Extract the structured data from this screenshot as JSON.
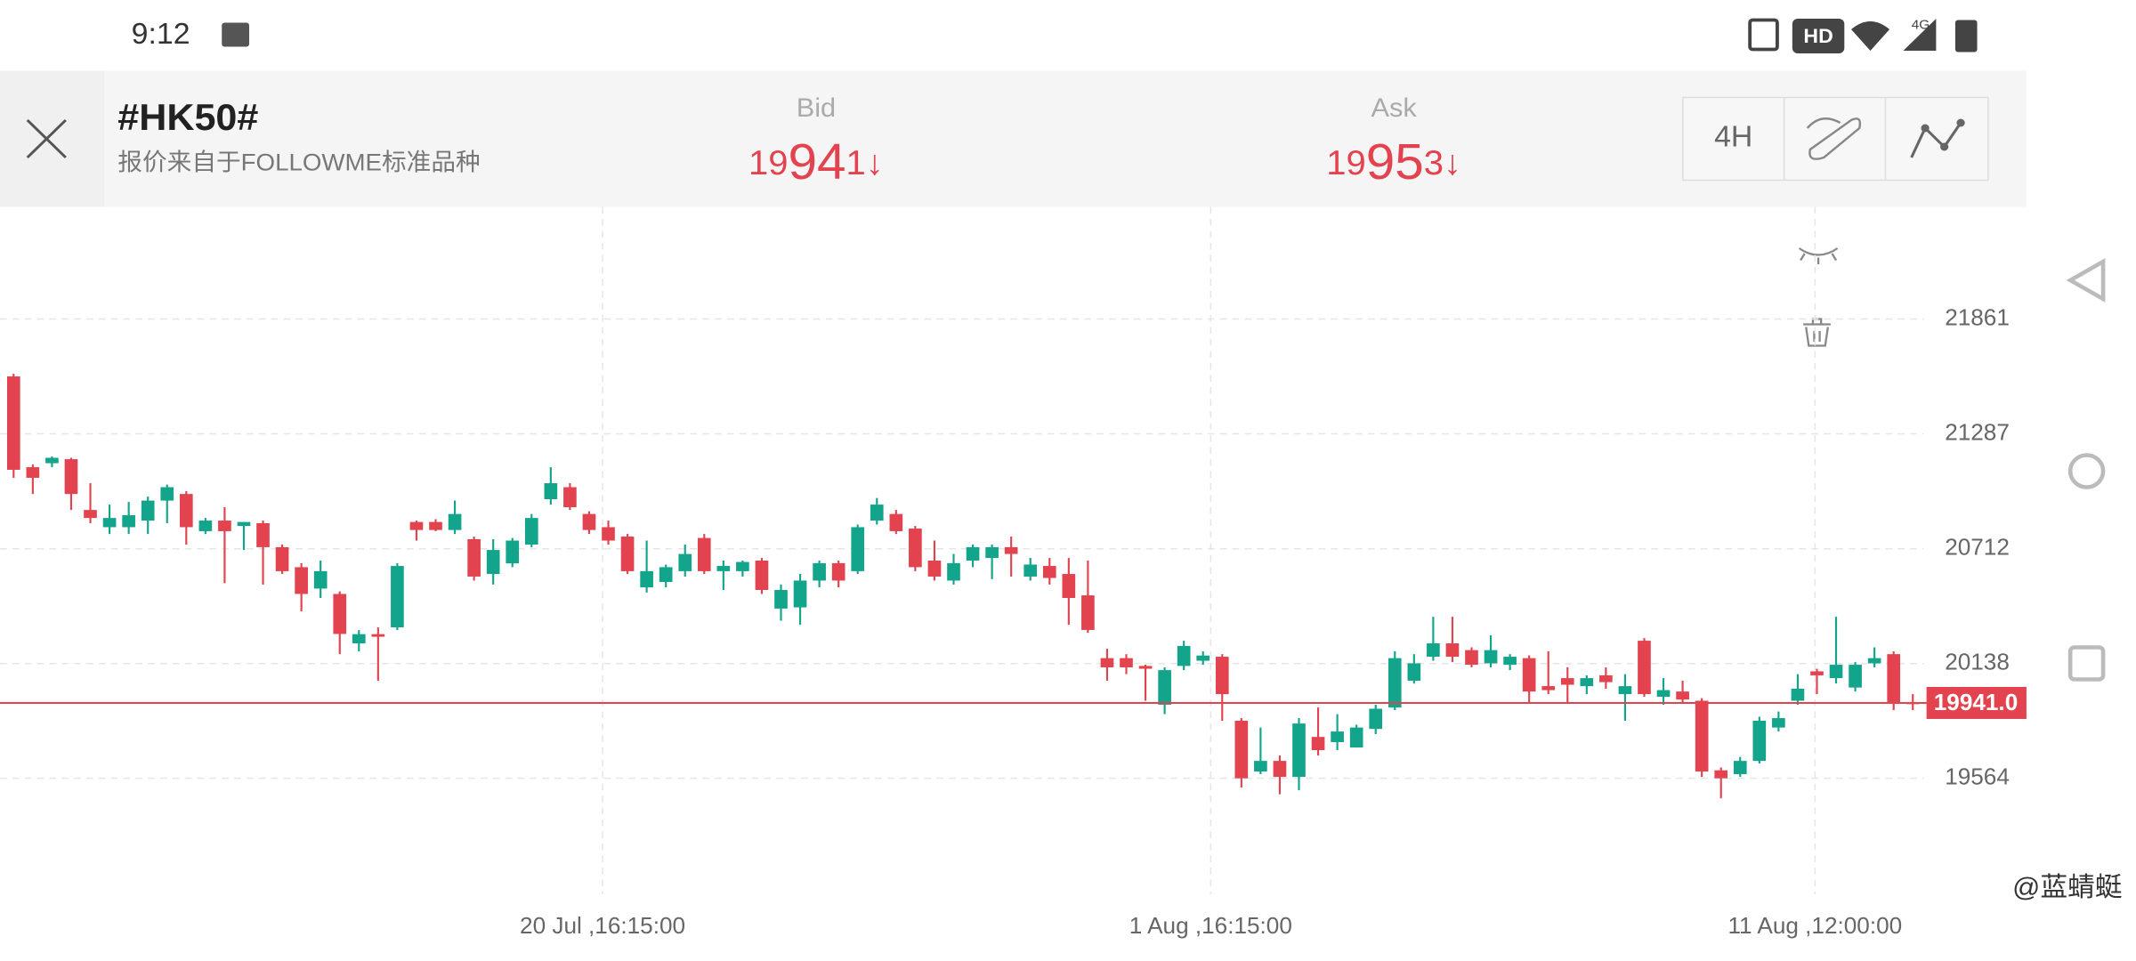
{
  "status_bar": {
    "time": "9:12",
    "hd": "HD",
    "network": "4G"
  },
  "header": {
    "symbol": "#HK50#",
    "source": "报价来自于FOLLOWME标准品种",
    "bid": {
      "label": "Bid",
      "price_parts": [
        "19",
        "94",
        "1"
      ],
      "direction": "↓"
    },
    "ask": {
      "label": "Ask",
      "price_parts": [
        "19",
        "95",
        "3"
      ],
      "direction": "↓"
    },
    "timeframe": "4H"
  },
  "chart_data": {
    "type": "candlestick",
    "up_color": "#13a58c",
    "down_color": "#e2434f",
    "grid": true,
    "ylim": [
      18984,
      22422
    ],
    "yticks": [
      21861,
      21287,
      20712,
      20138,
      19564
    ],
    "xlim": [
      -0.71,
      99.57
    ],
    "xticks": [
      {
        "value": 30.7,
        "label": "20 Jul ,16:15:00"
      },
      {
        "value": 62.4,
        "label": "1 Aug ,16:15:00"
      },
      {
        "value": 93.9,
        "label": "11 Aug ,12:00:00"
      }
    ],
    "last_price": {
      "value": 19941,
      "label": "19941.0"
    },
    "open": [
      21574,
      21120,
      21140,
      21160,
      20906,
      20820,
      20820,
      20853,
      20953,
      20986,
      20800,
      20853,
      20826,
      20840,
      20720,
      20620,
      20513,
      20486,
      20239,
      20285,
      20319,
      20846,
      20846,
      20806,
      20760,
      20586,
      20639,
      20733,
      20960,
      21020,
      20886,
      20820,
      20773,
      20519,
      20546,
      20600,
      20766,
      20600,
      20600,
      20653,
      20413,
      20419,
      20553,
      20640,
      20600,
      20853,
      20886,
      20813,
      20653,
      20553,
      20653,
      20666,
      20720,
      20573,
      20626,
      20586,
      20479,
      20165,
      20165,
      20126,
      19932,
      20126,
      20152,
      20172,
      19852,
      19598,
      19651,
      19571,
      19771,
      19745,
      19718,
      19811,
      19918,
      20052,
      20172,
      20239,
      20205,
      20139,
      20132,
      20165,
      20025,
      20065,
      20025,
      20079,
      19985,
      20252,
      19972,
      19998,
      19952,
      19604,
      19585,
      19651,
      19818,
      19952,
      20099,
      20065,
      20018,
      20139,
      20185,
      19945
    ],
    "high": [
      21587,
      21134,
      21174,
      21167,
      21040,
      20933,
      20946,
      20973,
      21033,
      21000,
      20866,
      20920,
      20846,
      20853,
      20733,
      20640,
      20653,
      20499,
      20305,
      20319,
      20640,
      20853,
      20860,
      20953,
      20773,
      20760,
      20766,
      20886,
      21120,
      21040,
      20900,
      20853,
      20786,
      20753,
      20633,
      20733,
      20786,
      20653,
      20653,
      20666,
      20533,
      20586,
      20653,
      20653,
      20833,
      20966,
      20906,
      20826,
      20753,
      20686,
      20733,
      20733,
      20773,
      20666,
      20666,
      20666,
      20653,
      20212,
      20185,
      20132,
      20119,
      20252,
      20199,
      20185,
      19865,
      19818,
      19678,
      19865,
      19918,
      19885,
      19832,
      19932,
      20199,
      20185,
      20372,
      20372,
      20219,
      20279,
      20185,
      20179,
      20199,
      20119,
      20079,
      20119,
      20085,
      20265,
      20065,
      20052,
      19965,
      19618,
      19671,
      19872,
      19898,
      20085,
      20112,
      20372,
      20145,
      20219,
      20199,
      19985
    ],
    "low": [
      21067,
      20986,
      21120,
      20906,
      20840,
      20786,
      20786,
      20786,
      20840,
      20733,
      20786,
      20540,
      20706,
      20533,
      20586,
      20399,
      20466,
      20185,
      20199,
      20052,
      20305,
      20753,
      20800,
      20786,
      20553,
      20533,
      20620,
      20720,
      20933,
      20906,
      20786,
      20733,
      20586,
      20493,
      20519,
      20573,
      20586,
      20506,
      20573,
      20486,
      20352,
      20332,
      20519,
      20519,
      20586,
      20833,
      20786,
      20600,
      20553,
      20533,
      20620,
      20560,
      20573,
      20553,
      20533,
      20332,
      20292,
      20052,
      20085,
      19952,
      19885,
      20105,
      20132,
      19852,
      19518,
      19585,
      19484,
      19504,
      19678,
      19705,
      19718,
      19785,
      19905,
      20038,
      20152,
      20145,
      20119,
      20119,
      20105,
      19938,
      19985,
      19945,
      19985,
      20012,
      19852,
      19972,
      19932,
      19945,
      19571,
      19464,
      19571,
      19638,
      19798,
      19932,
      19985,
      20038,
      19998,
      20119,
      19905,
      19905
    ],
    "close": [
      21107,
      21067,
      21167,
      20986,
      20866,
      20866,
      20880,
      20953,
      21020,
      20820,
      20853,
      20800,
      20846,
      20720,
      20600,
      20486,
      20600,
      20286,
      20285,
      20272,
      20626,
      20806,
      20806,
      20886,
      20573,
      20706,
      20753,
      20866,
      21040,
      20920,
      20806,
      20753,
      20600,
      20600,
      20620,
      20686,
      20600,
      20626,
      20646,
      20506,
      20506,
      20553,
      20640,
      20553,
      20820,
      20933,
      20800,
      20620,
      20573,
      20640,
      20720,
      20720,
      20686,
      20633,
      20566,
      20466,
      20306,
      20119,
      20119,
      20112,
      20105,
      20226,
      20178,
      19985,
      19564,
      19651,
      19571,
      19838,
      19705,
      19798,
      19818,
      19912,
      20165,
      20139,
      20239,
      20172,
      20132,
      20205,
      20172,
      19998,
      20005,
      20032,
      20065,
      20045,
      20025,
      19985,
      20005,
      19958,
      19598,
      19564,
      19651,
      19852,
      19865,
      20012,
      20079,
      20132,
      20132,
      20165,
      19938,
      19941
    ]
  },
  "watermark": "@蓝蜻蜓"
}
